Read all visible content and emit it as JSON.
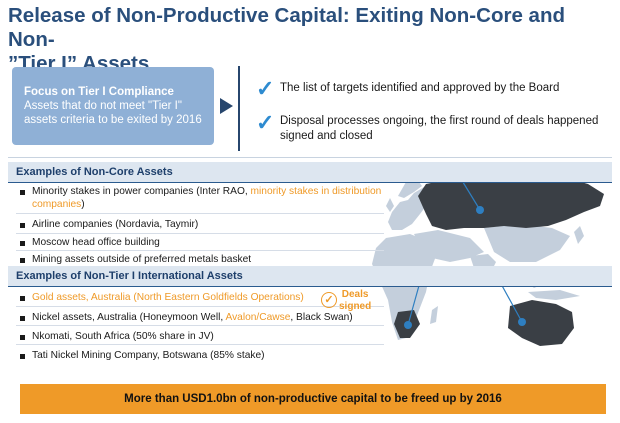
{
  "title_line1": "Release of Non-Productive Capital: Exiting Non-Core and Non-",
  "title_line2": "”Tier I” Assets",
  "focus": {
    "heading": "Focus on Tier I Compliance",
    "body_line1": "Assets that do not meet \"Tier I\"",
    "body_line2": "assets criteria to be exited by 2016"
  },
  "checks": [
    {
      "line1": "The list of targets identified and approved by the Board",
      "line2": ""
    },
    {
      "line1": "Disposal processes ongoing, the first round of deals happened",
      "line2": "signed and closed"
    }
  ],
  "non_core": {
    "heading": "Examples of Non-Core Assets",
    "items": [
      {
        "text": "Minority stakes in power companies (Inter RAO, ",
        "highlight": "minority stakes in distribution",
        "line2_highlight": "companies",
        "line2_text": ")"
      },
      {
        "text": "Airline companies (Nordavia, Taymir)"
      },
      {
        "text": "Moscow head office building"
      },
      {
        "text": "Mining assets outside of preferred metals basket"
      }
    ]
  },
  "non_tier": {
    "heading": "Examples of Non-Tier I International Assets",
    "items": [
      {
        "highlight": "Gold assets, Australia (North Eastern Goldfields Operations)"
      },
      {
        "text": "Nickel assets, Australia (Honeymoon Well, ",
        "highlight": "Avalon/Cawse",
        "text2": ", Black Swan)"
      },
      {
        "text": "Nkomati, South Africa (50% share in JV)"
      },
      {
        "text": "Tati Nickel Mining Company, Botswana (85% stake)"
      }
    ]
  },
  "deals": {
    "line1": "Deals",
    "line2": "signed",
    "icon": "check-circle-icon"
  },
  "banner": "More than USD1.0bn of non-productive capital to be freed up by 2016",
  "colors": {
    "navy": "#2a4f7c",
    "orange": "#ef9a28",
    "light_blue": "#8fb0d6",
    "russia": "#3a3f45"
  }
}
